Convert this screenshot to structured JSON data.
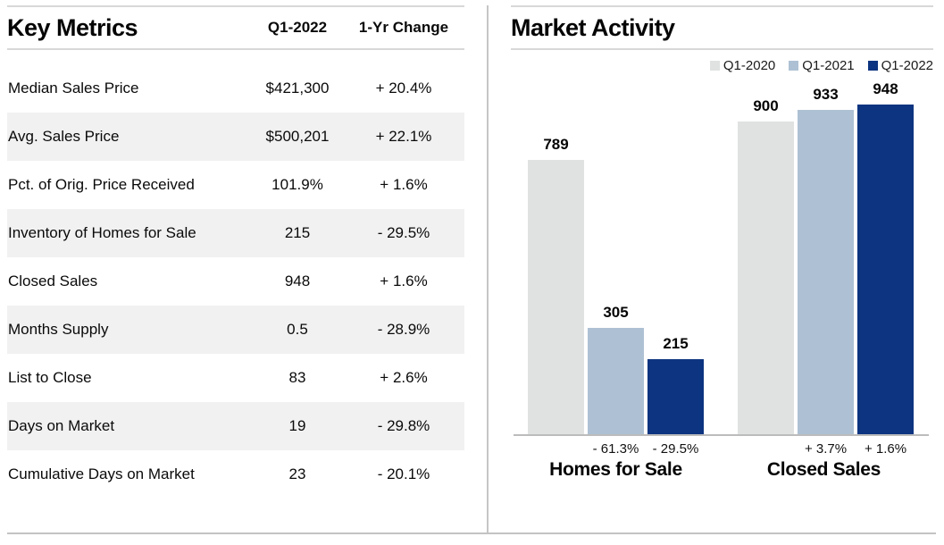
{
  "report": {
    "key_metrics": {
      "title": "Key Metrics",
      "columns": {
        "value": "Q1-2022",
        "change": "1-Yr Change"
      },
      "rows": [
        {
          "label": "Median Sales Price",
          "value": "$421,300",
          "change": "+ 20.4%"
        },
        {
          "label": "Avg. Sales Price",
          "value": "$500,201",
          "change": "+ 22.1%"
        },
        {
          "label": "Pct. of Orig. Price Received",
          "value": "101.9%",
          "change": "+ 1.6%"
        },
        {
          "label": "Inventory of Homes for Sale",
          "value": "215",
          "change": "- 29.5%"
        },
        {
          "label": "Closed Sales",
          "value": "948",
          "change": "+ 1.6%"
        },
        {
          "label": "Months Supply",
          "value": "0.5",
          "change": "- 28.9%"
        },
        {
          "label": "List to Close",
          "value": "83",
          "change": "+ 2.6%"
        },
        {
          "label": "Days on Market",
          "value": "19",
          "change": "- 29.8%"
        },
        {
          "label": "Cumulative Days on Market",
          "value": "23",
          "change": "- 20.1%"
        }
      ]
    },
    "market_activity": {
      "title": "Market Activity"
    }
  },
  "chart_data": {
    "type": "bar",
    "title": "Market Activity",
    "legend_position": "top-right",
    "grid": false,
    "value_labels": true,
    "ylim": [
      0,
      1000
    ],
    "categories": [
      "Homes for Sale",
      "Closed Sales"
    ],
    "series": [
      {
        "name": "Q1-2020",
        "color": "#dfe2e1",
        "values": [
          789,
          900
        ],
        "pct_changes": [
          "",
          ""
        ]
      },
      {
        "name": "Q1-2021",
        "color": "#aec1d4",
        "values": [
          305,
          933
        ],
        "pct_changes": [
          "- 61.3%",
          "+ 3.7%"
        ]
      },
      {
        "name": "Q1-2022",
        "color": "#0d3480",
        "values": [
          215,
          948
        ],
        "pct_changes": [
          "- 29.5%",
          "+ 1.6%"
        ]
      }
    ],
    "axis_color": "#bcbcbc"
  },
  "style": {
    "stripe_color": "#f1f1f1",
    "rule_color": "#d8d8d8",
    "divider_color": "#c6c6c6"
  }
}
